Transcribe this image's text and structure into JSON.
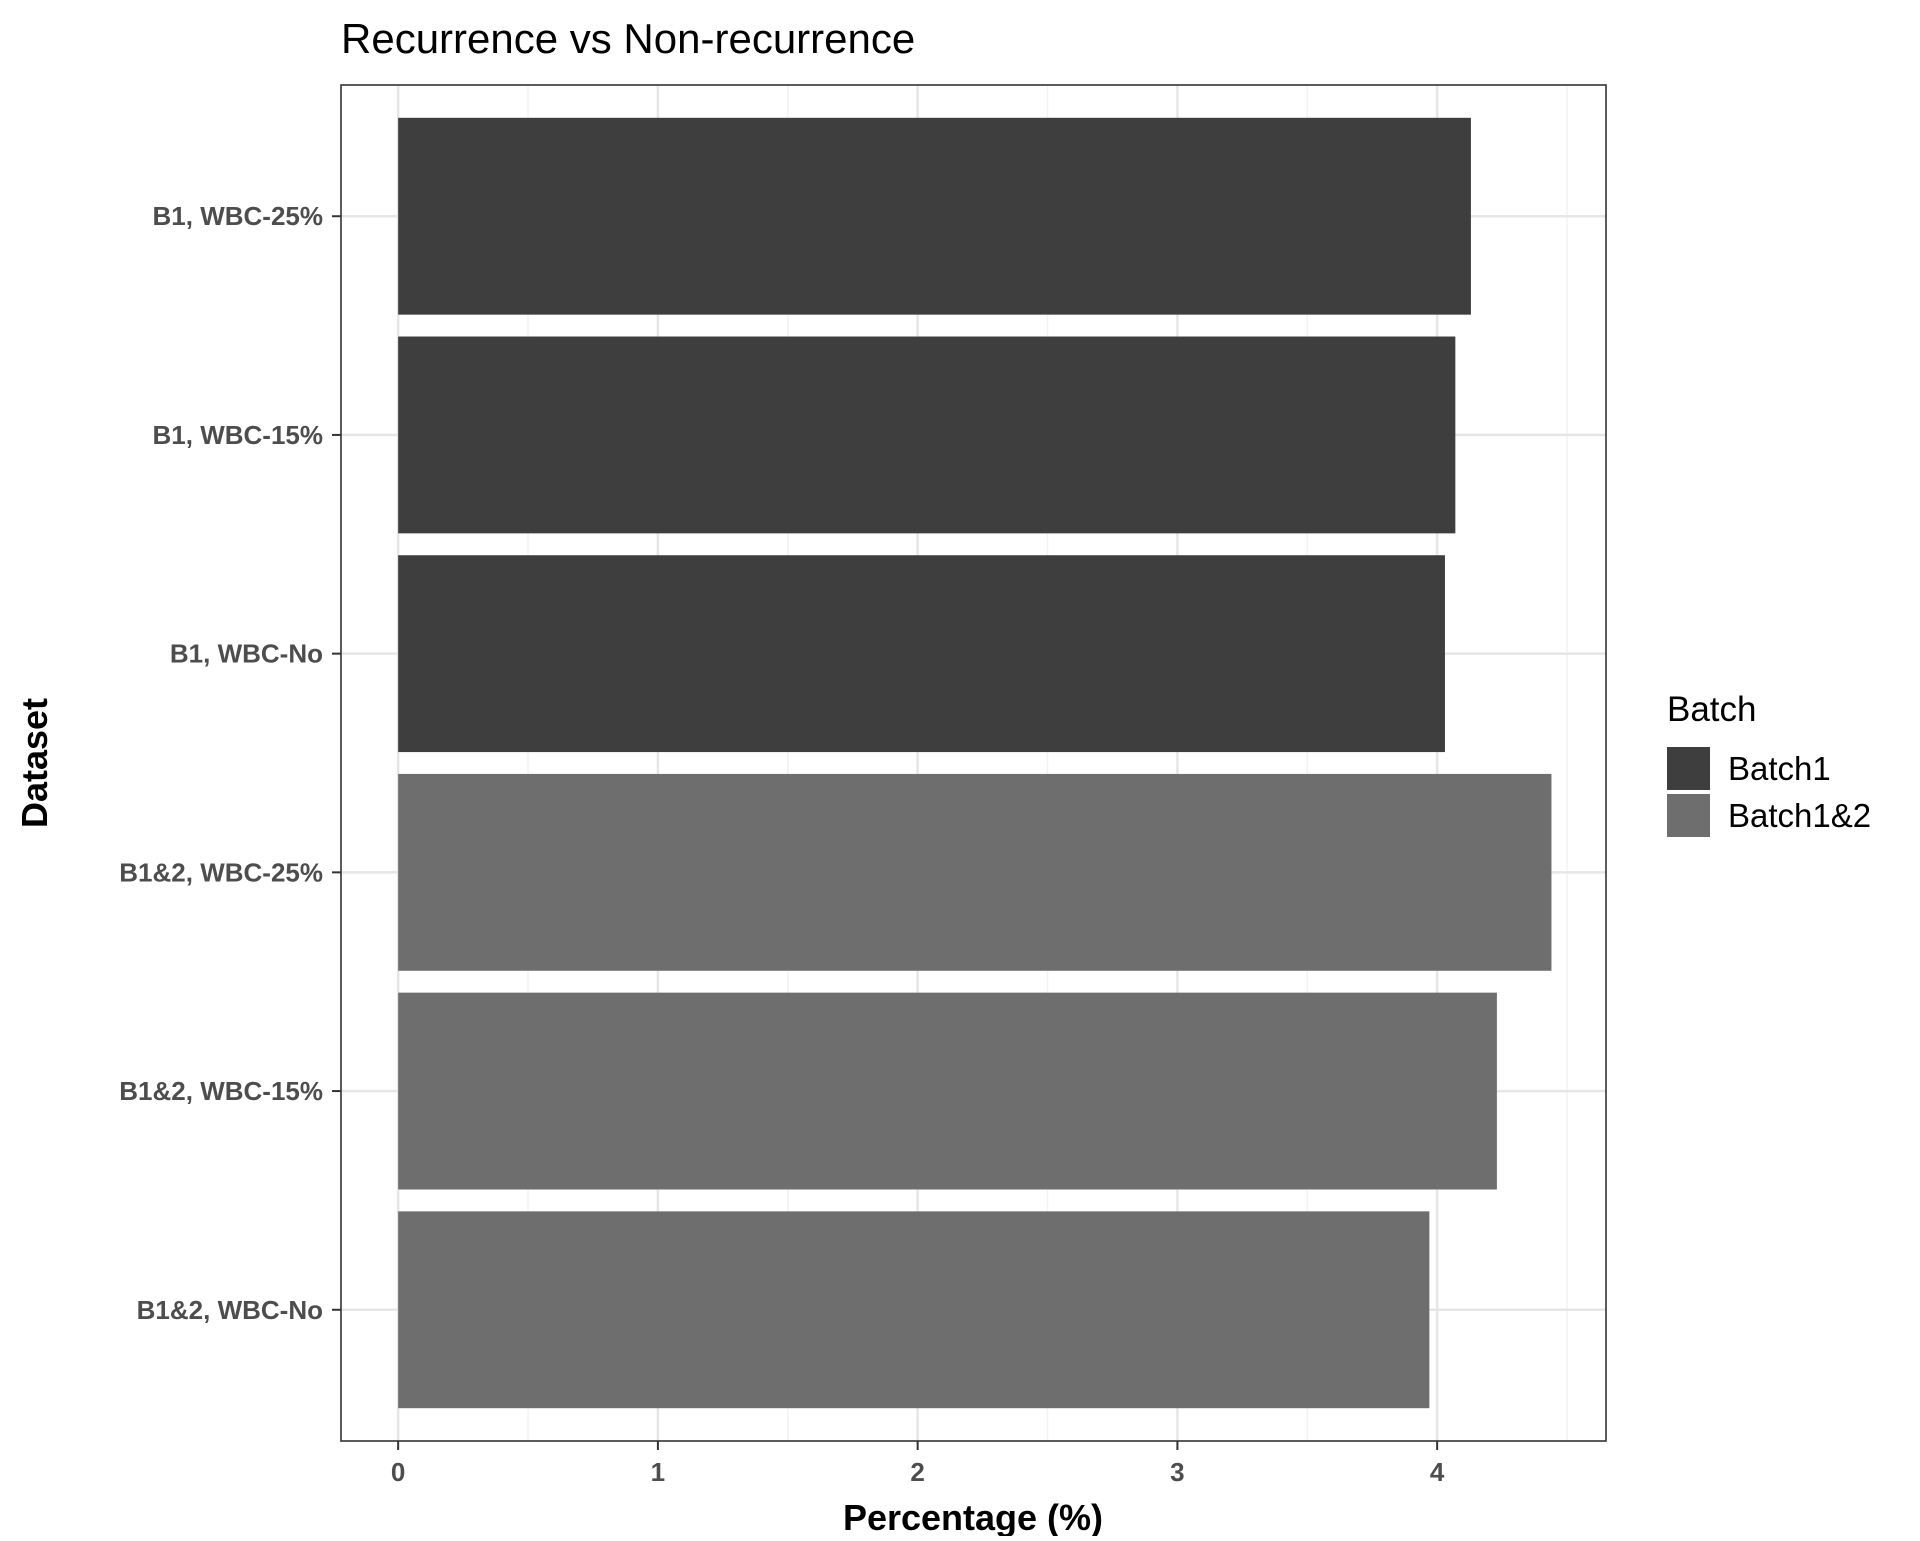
{
  "chart_data": {
    "type": "bar",
    "orientation": "horizontal",
    "title": "Recurrence vs Non-recurrence",
    "xlabel": "Percentage (%)",
    "ylabel": "Dataset",
    "categories": [
      "B1, WBC-25%",
      "B1, WBC-15%",
      "B1, WBC-No",
      "B1&2, WBC-25%",
      "B1&2, WBC-15%",
      "B1&2, WBC-No"
    ],
    "values": [
      4.13,
      4.07,
      4.03,
      4.44,
      4.23,
      3.97
    ],
    "batch": [
      "Batch1",
      "Batch1",
      "Batch1",
      "Batch1&2",
      "Batch1&2",
      "Batch1&2"
    ],
    "xlim": [
      -0.22,
      4.65
    ],
    "xticks": [
      0,
      1,
      2,
      3,
      4
    ],
    "grid": true,
    "legend": {
      "title": "Batch",
      "position": "right",
      "entries": [
        {
          "name": "Batch1",
          "color": "#3e3e3e"
        },
        {
          "name": "Batch1&2",
          "color": "#6e6e6e"
        }
      ]
    }
  }
}
